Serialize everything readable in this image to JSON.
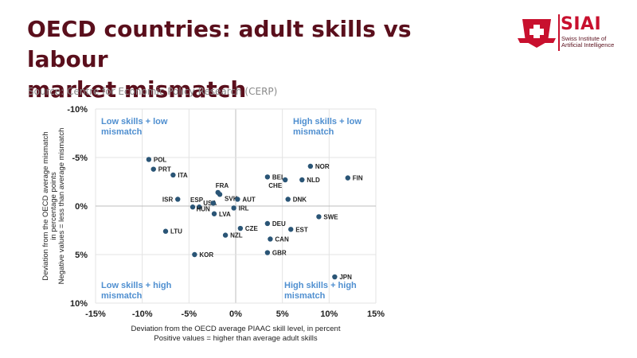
{
  "header": {
    "title_line1": "OECD countries: adult skills vs labour",
    "title_line2": "market mismatch",
    "source": "Source: Centre for Economic Policy Research (CERP)"
  },
  "logo": {
    "name": "SIAI",
    "sub_line1": "Swiss Institute of",
    "sub_line2": "Artificial Intelligence",
    "colors": {
      "red": "#c8102e",
      "maroon": "#5a0f1c"
    }
  },
  "chart_data": {
    "type": "scatter",
    "title": "",
    "xlabel_lines": [
      "Deviation from the OECD average PIAAC skill level, in percent",
      "Positive values = higher than average adult skills"
    ],
    "ylabel_lines": [
      "Deviation from the OECD average mismatch",
      "in percentage points",
      "Negative values = less than average mismatch"
    ],
    "xlim": [
      -15,
      15
    ],
    "ylim": [
      -10,
      10
    ],
    "y_inverted": true,
    "x_ticks": [
      "-15%",
      "-10%",
      "-5%",
      "0%",
      "5%",
      "10%",
      "15%"
    ],
    "x_tick_values": [
      -15,
      -10,
      -5,
      0,
      5,
      10,
      15
    ],
    "y_ticks": [
      "-10%",
      "-5%",
      "0%",
      "5%",
      "10%"
    ],
    "y_tick_values": [
      -10,
      -5,
      0,
      5,
      10
    ],
    "grid": true,
    "point_color": "#2a5576",
    "quadrant_color": "#4f8fd0",
    "quadrant_labels": {
      "top_left": [
        "Low skills + low",
        "mismatch"
      ],
      "top_right": [
        "High skills + low",
        "mismatch"
      ],
      "bottom_left": [
        "Low skills + high",
        "mismatch"
      ],
      "bottom_right": [
        "High skills + high",
        "mismatch"
      ]
    },
    "points": [
      {
        "label": "POL",
        "x": -9.3,
        "y": -4.8,
        "pos": "right"
      },
      {
        "label": "PRT",
        "x": -8.8,
        "y": -3.8,
        "pos": "right"
      },
      {
        "label": "ITA",
        "x": -6.7,
        "y": -3.2,
        "pos": "right"
      },
      {
        "label": "ISR",
        "x": -6.2,
        "y": -0.7,
        "pos": "left"
      },
      {
        "label": "ESP",
        "x": -4.6,
        "y": 0.1,
        "pos": "above"
      },
      {
        "label": "USA",
        "x": -3.9,
        "y": 0.1,
        "pos": "right-up"
      },
      {
        "label": "HUN",
        "x": -2.4,
        "y": -0.3,
        "pos": "left-down"
      },
      {
        "label": "LVA",
        "x": -2.3,
        "y": 0.8,
        "pos": "right"
      },
      {
        "label": "FRA",
        "x": -1.9,
        "y": -1.4,
        "pos": "above"
      },
      {
        "label": "SVK",
        "x": -1.7,
        "y": -1.2,
        "pos": "right-down"
      },
      {
        "label": "AUT",
        "x": 0.2,
        "y": -0.7,
        "pos": "right"
      },
      {
        "label": "IRL",
        "x": -0.2,
        "y": 0.2,
        "pos": "right"
      },
      {
        "label": "LTU",
        "x": -7.5,
        "y": 2.6,
        "pos": "right"
      },
      {
        "label": "NZL",
        "x": -1.1,
        "y": 3.0,
        "pos": "right"
      },
      {
        "label": "CZE",
        "x": 0.5,
        "y": 2.3,
        "pos": "right"
      },
      {
        "label": "KOR",
        "x": -4.4,
        "y": 5.0,
        "pos": "right"
      },
      {
        "label": "BEL",
        "x": 3.4,
        "y": -3.0,
        "pos": "right"
      },
      {
        "label": "CHE",
        "x": 5.3,
        "y": -2.7,
        "pos": "left-down"
      },
      {
        "label": "NOR",
        "x": 8.0,
        "y": -4.1,
        "pos": "right"
      },
      {
        "label": "NLD",
        "x": 7.1,
        "y": -2.7,
        "pos": "right"
      },
      {
        "label": "FIN",
        "x": 12.0,
        "y": -2.9,
        "pos": "right"
      },
      {
        "label": "DNK",
        "x": 5.6,
        "y": -0.7,
        "pos": "right"
      },
      {
        "label": "SWE",
        "x": 8.9,
        "y": 1.1,
        "pos": "right"
      },
      {
        "label": "DEU",
        "x": 3.4,
        "y": 1.8,
        "pos": "right"
      },
      {
        "label": "EST",
        "x": 5.9,
        "y": 2.4,
        "pos": "right"
      },
      {
        "label": "CAN",
        "x": 3.7,
        "y": 3.4,
        "pos": "right"
      },
      {
        "label": "GBR",
        "x": 3.4,
        "y": 4.8,
        "pos": "right"
      },
      {
        "label": "JPN",
        "x": 10.6,
        "y": 7.3,
        "pos": "right"
      }
    ]
  }
}
